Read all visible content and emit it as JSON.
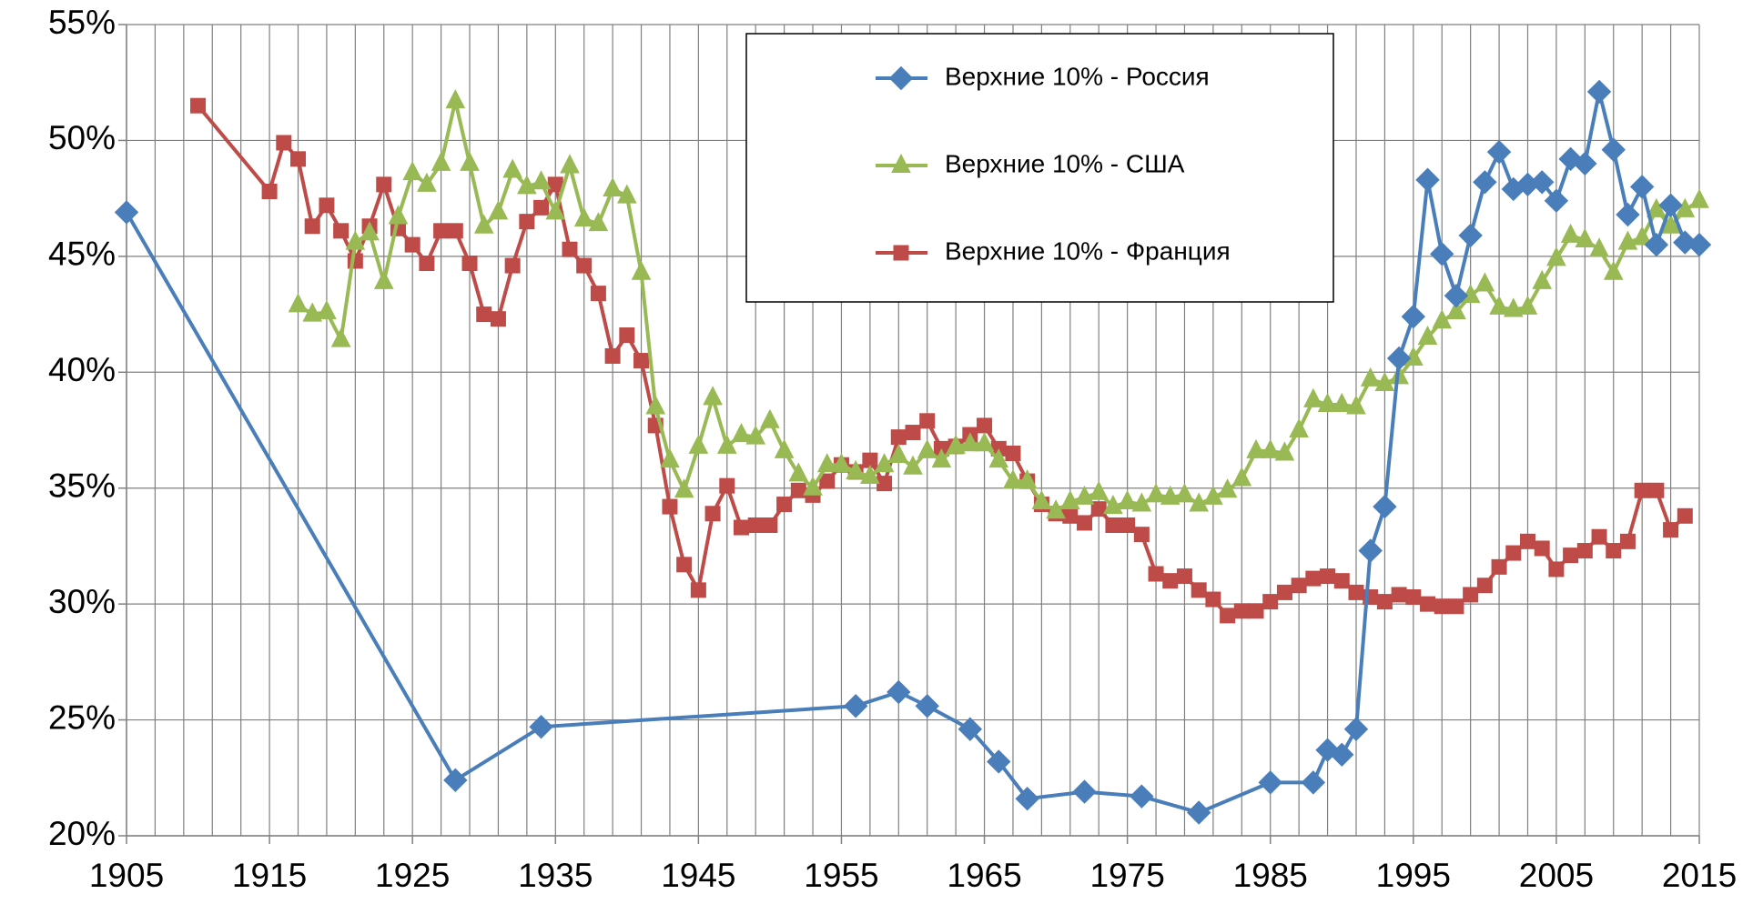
{
  "chart_data": {
    "type": "line",
    "xlim": [
      1905,
      2015
    ],
    "xticks": [
      1905,
      1915,
      1925,
      1935,
      1945,
      1955,
      1965,
      1975,
      1985,
      1995,
      2005,
      2015
    ],
    "xminorticks": [
      1907,
      1909,
      1911,
      1913,
      1917,
      1919,
      1921,
      1923,
      1927,
      1929,
      1931,
      1933,
      1937,
      1939,
      1941,
      1943,
      1947,
      1949,
      1951,
      1953,
      1957,
      1959,
      1961,
      1963,
      1967,
      1969,
      1971,
      1973,
      1977,
      1979,
      1981,
      1983,
      1987,
      1989,
      1991,
      1993,
      1997,
      1999,
      2001,
      2003,
      2007,
      2009,
      2011,
      2013
    ],
    "ylim": [
      20,
      55
    ],
    "yticks": [
      {
        "value": 20,
        "label": "20%"
      },
      {
        "value": 25,
        "label": "25%"
      },
      {
        "value": 30,
        "label": "30%"
      },
      {
        "value": 35,
        "label": "35%"
      },
      {
        "value": 40,
        "label": "40%"
      },
      {
        "value": 45,
        "label": "45%"
      },
      {
        "value": 50,
        "label": "50%"
      },
      {
        "value": 55,
        "label": "55%"
      }
    ],
    "grid": true,
    "legend": "top-center",
    "series": [
      {
        "name": "Верхние 10% - Россия",
        "color": "#4a7ebb",
        "marker": "diamond",
        "x": [
          1905,
          1928,
          1934,
          1956,
          1959,
          1961,
          1964,
          1966,
          1968,
          1972,
          1976,
          1980,
          1985,
          1988,
          1989,
          1990,
          1991,
          1992,
          1993,
          1994,
          1995,
          1996,
          1997,
          1998,
          1999,
          2000,
          2001,
          2002,
          2003,
          2004,
          2005,
          2006,
          2007,
          2008,
          2009,
          2010,
          2011,
          2012,
          2013,
          2014,
          2015
        ],
        "values": [
          46.9,
          22.4,
          24.7,
          25.6,
          26.2,
          25.6,
          24.6,
          23.2,
          21.6,
          21.9,
          21.7,
          21.0,
          22.3,
          22.3,
          23.7,
          23.5,
          24.6,
          32.3,
          34.2,
          40.6,
          42.4,
          48.3,
          45.1,
          43.3,
          45.9,
          48.2,
          49.5,
          47.9,
          48.1,
          48.2,
          47.4,
          49.2,
          49.0,
          52.1,
          49.6,
          46.8,
          48.0,
          45.5,
          47.2,
          45.6,
          45.5
        ]
      },
      {
        "name": "Верхние 10% - США",
        "color": "#98b954",
        "marker": "triangle",
        "x": [
          1917,
          1918,
          1919,
          1920,
          1921,
          1922,
          1923,
          1924,
          1925,
          1926,
          1927,
          1928,
          1929,
          1930,
          1931,
          1932,
          1933,
          1934,
          1935,
          1936,
          1937,
          1938,
          1939,
          1940,
          1941,
          1942,
          1943,
          1944,
          1945,
          1946,
          1947,
          1948,
          1949,
          1950,
          1951,
          1952,
          1953,
          1954,
          1955,
          1956,
          1957,
          1958,
          1959,
          1960,
          1961,
          1962,
          1963,
          1964,
          1965,
          1966,
          1967,
          1968,
          1969,
          1970,
          1971,
          1972,
          1973,
          1974,
          1975,
          1976,
          1977,
          1978,
          1979,
          1980,
          1981,
          1982,
          1983,
          1984,
          1985,
          1986,
          1987,
          1988,
          1989,
          1990,
          1991,
          1992,
          1993,
          1994,
          1995,
          1996,
          1997,
          1998,
          1999,
          2000,
          2001,
          2002,
          2003,
          2004,
          2005,
          2006,
          2007,
          2008,
          2009,
          2010,
          2011,
          2012,
          2013,
          2014,
          2015
        ],
        "values": [
          42.9,
          42.5,
          42.6,
          41.4,
          45.6,
          46.0,
          43.9,
          46.7,
          48.6,
          48.1,
          49.0,
          51.7,
          49.0,
          46.3,
          46.9,
          48.7,
          48.0,
          48.2,
          46.9,
          48.9,
          46.6,
          46.4,
          47.9,
          47.6,
          44.3,
          38.5,
          36.2,
          34.9,
          36.8,
          38.9,
          36.8,
          37.3,
          37.2,
          37.9,
          36.6,
          35.6,
          35.0,
          36.0,
          36.0,
          35.7,
          35.5,
          36.0,
          36.4,
          35.9,
          36.6,
          36.2,
          36.8,
          36.9,
          36.9,
          36.2,
          35.3,
          35.3,
          34.4,
          34.0,
          34.4,
          34.6,
          34.8,
          34.2,
          34.4,
          34.3,
          34.7,
          34.6,
          34.7,
          34.3,
          34.6,
          34.9,
          35.4,
          36.6,
          36.6,
          36.5,
          37.5,
          38.8,
          38.6,
          38.6,
          38.5,
          39.7,
          39.5,
          39.8,
          40.6,
          41.5,
          42.2,
          42.6,
          43.3,
          43.8,
          42.8,
          42.7,
          42.8,
          43.9,
          44.9,
          45.9,
          45.7,
          45.3,
          44.3,
          45.6,
          45.8,
          47.0,
          46.3,
          47.0,
          47.4
        ]
      },
      {
        "name": "Верхние 10% - Франция",
        "color": "#be4b48",
        "marker": "square",
        "x": [
          1910,
          1915,
          1916,
          1917,
          1918,
          1919,
          1920,
          1921,
          1922,
          1923,
          1924,
          1925,
          1926,
          1927,
          1928,
          1929,
          1930,
          1931,
          1932,
          1933,
          1934,
          1935,
          1936,
          1937,
          1938,
          1939,
          1940,
          1941,
          1942,
          1943,
          1944,
          1945,
          1946,
          1947,
          1948,
          1949,
          1950,
          1951,
          1952,
          1953,
          1954,
          1955,
          1956,
          1957,
          1958,
          1959,
          1960,
          1961,
          1962,
          1963,
          1964,
          1965,
          1966,
          1967,
          1968,
          1969,
          1970,
          1971,
          1972,
          1973,
          1974,
          1975,
          1976,
          1977,
          1978,
          1979,
          1980,
          1981,
          1982,
          1983,
          1984,
          1985,
          1986,
          1987,
          1988,
          1989,
          1990,
          1991,
          1992,
          1993,
          1994,
          1995,
          1996,
          1997,
          1998,
          1999,
          2000,
          2001,
          2002,
          2003,
          2004,
          2005,
          2006,
          2007,
          2008,
          2009,
          2010,
          2011,
          2012,
          2013,
          2014
        ],
        "values": [
          51.5,
          47.8,
          49.9,
          49.2,
          46.3,
          47.2,
          46.1,
          44.8,
          46.3,
          48.1,
          46.2,
          45.5,
          44.7,
          46.1,
          46.1,
          44.7,
          42.5,
          42.3,
          44.6,
          46.5,
          47.1,
          48.1,
          45.3,
          44.6,
          43.4,
          40.7,
          41.6,
          40.5,
          37.7,
          34.2,
          31.7,
          30.6,
          33.9,
          35.1,
          33.3,
          33.4,
          33.4,
          34.3,
          34.9,
          34.7,
          35.3,
          36.0,
          35.7,
          36.2,
          35.2,
          37.2,
          37.4,
          37.9,
          36.7,
          36.8,
          37.3,
          37.7,
          36.7,
          36.5,
          35.3,
          34.3,
          33.9,
          33.8,
          33.5,
          34.1,
          33.4,
          33.4,
          33.0,
          31.3,
          31.0,
          31.2,
          30.6,
          30.2,
          29.5,
          29.7,
          29.7,
          30.1,
          30.5,
          30.8,
          31.1,
          31.2,
          31.0,
          30.5,
          30.3,
          30.1,
          30.4,
          30.3,
          30.0,
          29.9,
          29.9,
          30.4,
          30.8,
          31.6,
          32.2,
          32.7,
          32.4,
          31.5,
          32.1,
          32.3,
          32.9,
          32.3,
          32.7,
          34.9,
          34.9,
          33.2,
          33.8
        ]
      }
    ]
  }
}
